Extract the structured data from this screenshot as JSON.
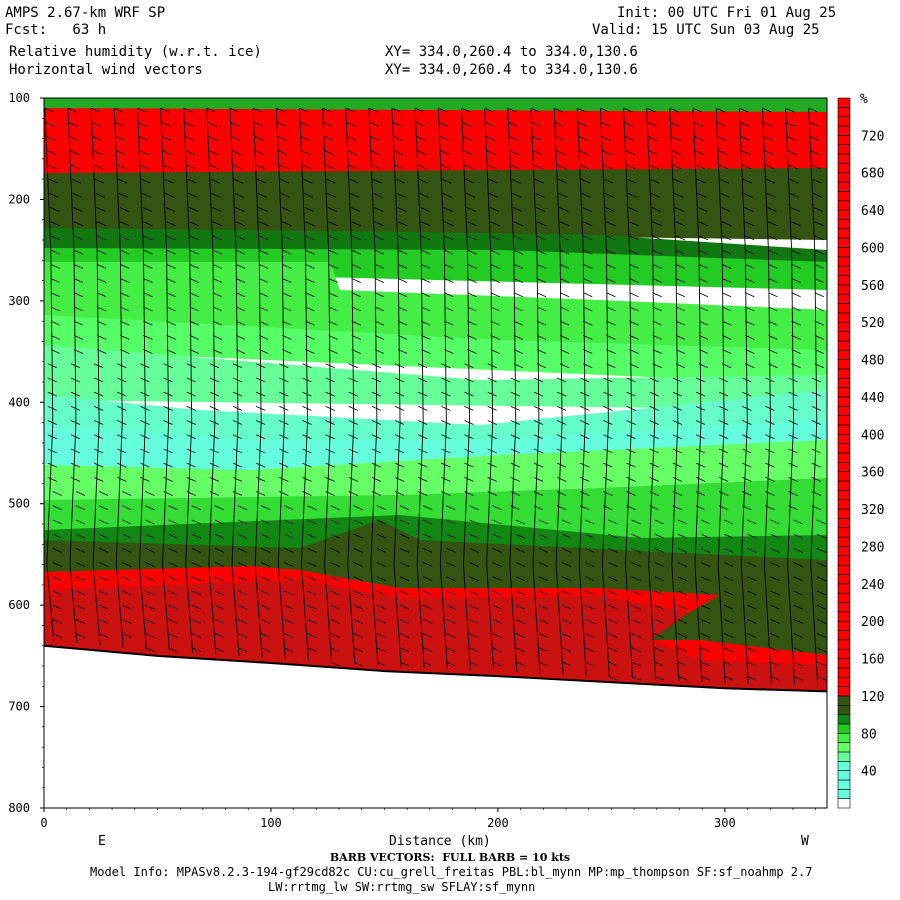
{
  "header": {
    "title": "AMPS 2.67-km WRF SP",
    "fcst": "Fcst:   63 h",
    "field1": "Relative humidity (w.r.t. ice)",
    "field2": "Horizontal wind vectors",
    "init": "Init: 00 UTC Fri 01 Aug 25",
    "valid": "Valid: 15 UTC Sun 03 Aug 25",
    "xy1": "XY= 334.0,260.4 to 334.0,130.6",
    "xy2": "XY= 334.0,260.4 to 334.0,130.6"
  },
  "footer": {
    "barb": "BARB VECTORS:  FULL BARB = 10 kts",
    "model1": "Model Info: MPASv8.2.3-194-gf29cd82c CU:cu_grell_freitas PBL:bl_mynn MP:mp_thompson SF:sf_noahmp 2.7",
    "model2": "LW:rrtmg_lw SW:rrtmg_sw SFLAY:sf_mynn"
  },
  "chart_data": {
    "type": "heatmap",
    "title": "Relative humidity (w.r.t. ice)",
    "xlabel": "Distance (km)",
    "ylabel": "",
    "x_ticks": [
      0,
      100,
      200,
      300
    ],
    "x_range": [
      0,
      345
    ],
    "y_ticks": [
      100,
      200,
      300,
      400,
      500,
      600,
      700,
      800
    ],
    "y_range": [
      100,
      800
    ],
    "x_end_labels": {
      "left": "E",
      "right": "W"
    },
    "legend": {
      "unit": "%",
      "tick_labels": [
        "40",
        "80",
        "120",
        "160",
        "200",
        "240",
        "280",
        "320",
        "360",
        "400",
        "440",
        "480",
        "520",
        "560",
        "600",
        "640",
        "680",
        "720"
      ],
      "levels": [
        0,
        10,
        20,
        30,
        40,
        50,
        60,
        70,
        80,
        90,
        100,
        110,
        120,
        130,
        140,
        150,
        160,
        170,
        180,
        190,
        200,
        210,
        220,
        230,
        240,
        250,
        260,
        270,
        280,
        290,
        300,
        310,
        320,
        330,
        340,
        350,
        360,
        370,
        380,
        390,
        400,
        410,
        420,
        430,
        440,
        450,
        460,
        470,
        480,
        490,
        500,
        510,
        520,
        530,
        540,
        550,
        560,
        570,
        580,
        590,
        600,
        610,
        620,
        630,
        640,
        650,
        660,
        670,
        680,
        690,
        700,
        710,
        720,
        730,
        740,
        750,
        760
      ],
      "colors": {
        "white": "#ffffff",
        "aqua": "#66ffdd",
        "lightgreen": "#66ff66",
        "green": "#22cc22",
        "darkgreen": "#117711",
        "olive": "#335511",
        "red": "#ff0000",
        "darkred": "#cc1111"
      }
    },
    "terrain_pressure_hPa": [
      [
        0,
        640
      ],
      [
        50,
        650
      ],
      [
        100,
        657
      ],
      [
        150,
        665
      ],
      [
        200,
        670
      ],
      [
        250,
        676
      ],
      [
        300,
        682
      ],
      [
        345,
        685
      ]
    ],
    "rh_layers": [
      {
        "p_top": 100,
        "p_bot": 110,
        "rh": "80-100"
      },
      {
        "p_top": 110,
        "p_bot": 170,
        "rh": ">120"
      },
      {
        "p_top": 170,
        "p_bot": 230,
        "rh": "100-120"
      },
      {
        "p_top": 230,
        "p_bot": 260,
        "rh": "90-100"
      },
      {
        "p_top": 260,
        "p_bot": 330,
        "rh": "70-90"
      },
      {
        "p_top": 330,
        "p_bot": 420,
        "rh": "50-70"
      },
      {
        "p_top": 420,
        "p_bot": 470,
        "rh": "40-50"
      },
      {
        "p_top": 470,
        "p_bot": 540,
        "rh": "60-90"
      },
      {
        "p_top": 540,
        "p_bot": 580,
        "rh": "100-120"
      },
      {
        "p_top": 580,
        "p_bot": 690,
        "rh": ">120"
      }
    ]
  }
}
